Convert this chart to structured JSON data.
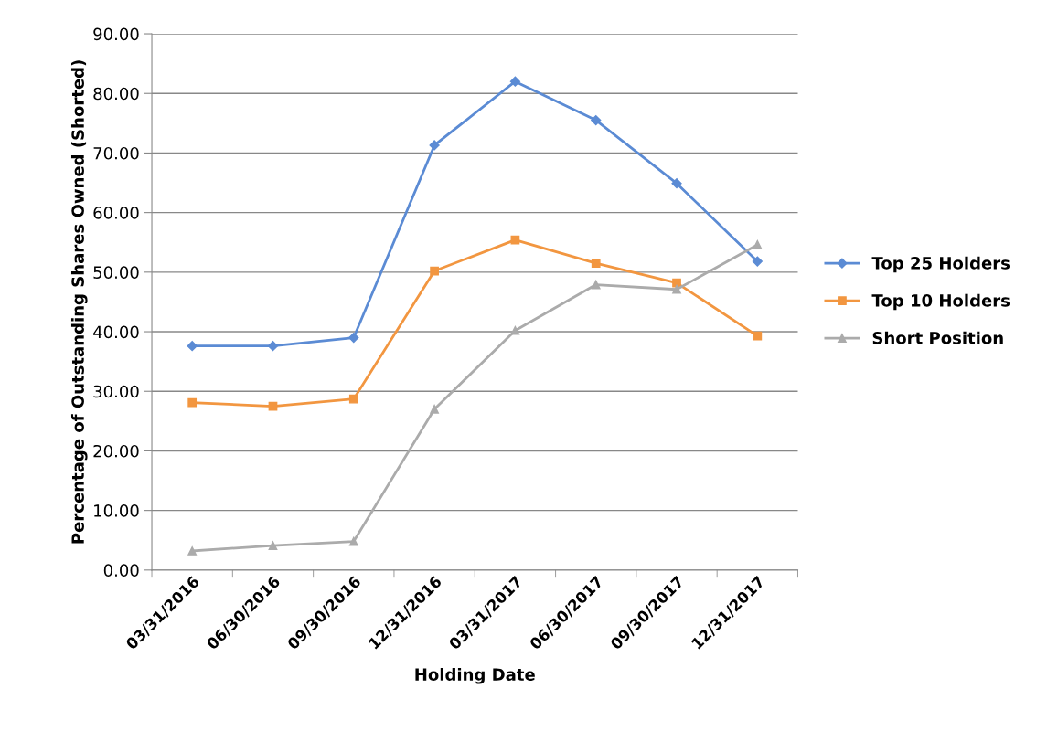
{
  "chart_data": {
    "type": "line",
    "xlabel": "Holding Date",
    "ylabel": "Percentage of Outstanding Shares Owned (Shorted)",
    "categories": [
      "03/31/2016",
      "06/30/2016",
      "09/30/2016",
      "12/31/2016",
      "03/31/2017",
      "06/30/2017",
      "09/30/2017",
      "12/31/2017"
    ],
    "series": [
      {
        "name": "Top 25 Holders",
        "color": "#5b8bd4",
        "marker": "diamond",
        "values": [
          37.6,
          37.6,
          39.0,
          71.3,
          82.0,
          75.5,
          64.9,
          51.8
        ]
      },
      {
        "name": "Top 10 Holders",
        "color": "#f29640",
        "marker": "square",
        "values": [
          28.1,
          27.5,
          28.7,
          50.2,
          55.4,
          51.5,
          48.2,
          39.3
        ]
      },
      {
        "name": "Short Position",
        "color": "#ababab",
        "marker": "triangle",
        "values": [
          3.2,
          4.1,
          4.8,
          27.0,
          40.2,
          47.9,
          47.1,
          54.6
        ]
      }
    ],
    "ylim": [
      0,
      90
    ],
    "yticks": [
      {
        "value": 0,
        "label": "0.00"
      },
      {
        "value": 10,
        "label": "10.00"
      },
      {
        "value": 20,
        "label": "20.00"
      },
      {
        "value": 30,
        "label": "30.00"
      },
      {
        "value": 40,
        "label": "40.00"
      },
      {
        "value": 50,
        "label": "50.00"
      },
      {
        "value": 60,
        "label": "60.00"
      },
      {
        "value": 70,
        "label": "70.00"
      },
      {
        "value": 80,
        "label": "80.00"
      },
      {
        "value": 90,
        "label": "90.00"
      }
    ],
    "grid": "y",
    "legend": "right",
    "line_style": "solid"
  }
}
